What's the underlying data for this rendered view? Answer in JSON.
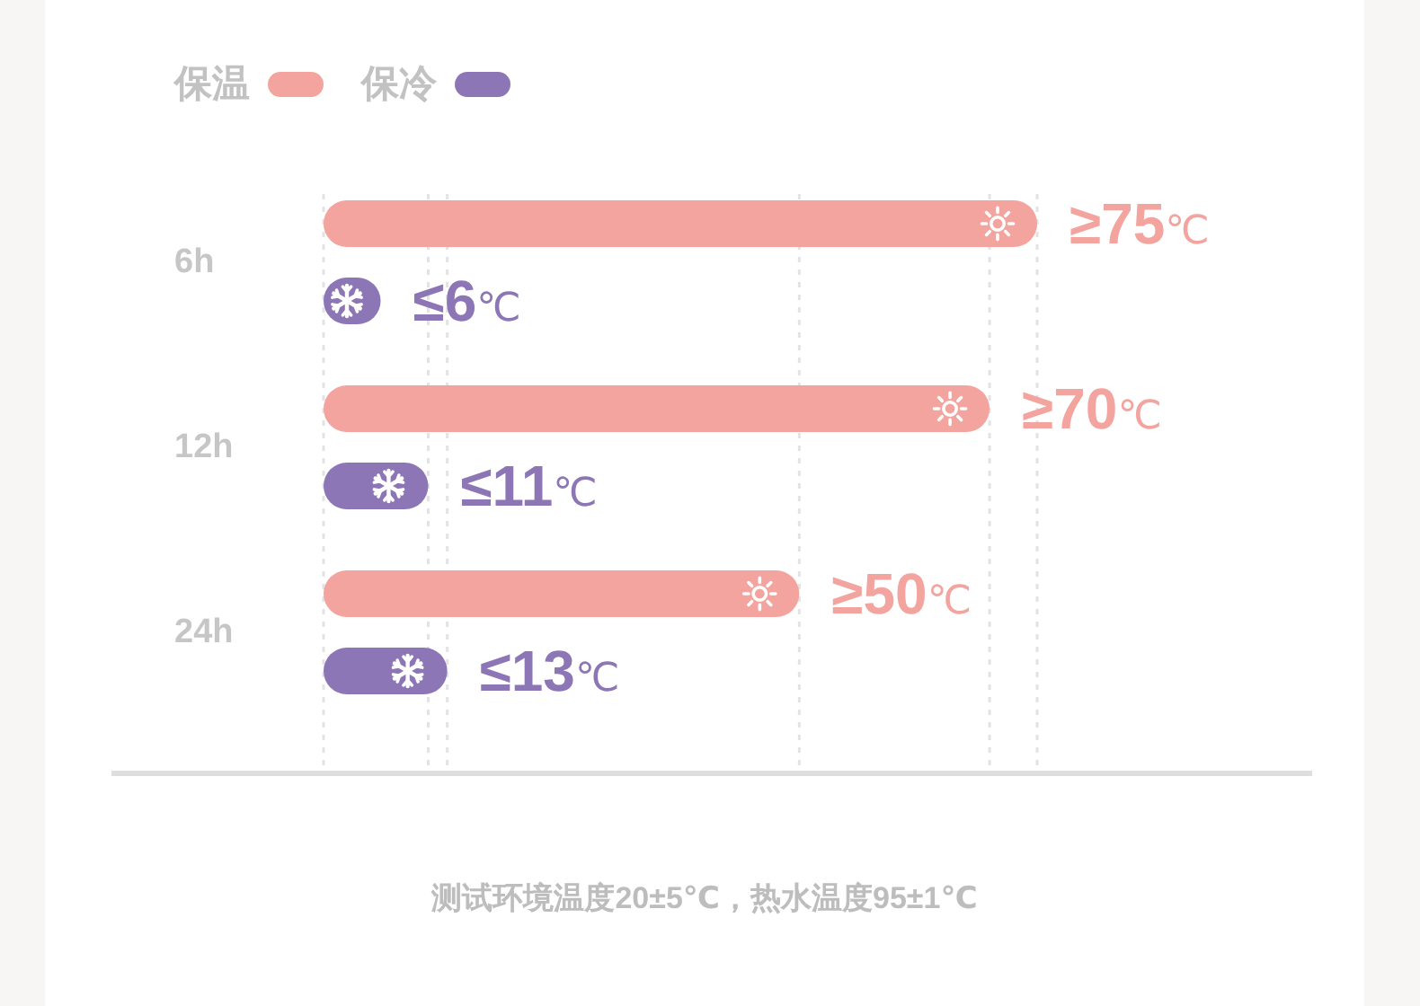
{
  "chart_data": {
    "type": "bar",
    "orientation": "horizontal",
    "categories": [
      "6h",
      "12h",
      "24h"
    ],
    "series": [
      {
        "name": "保温",
        "color": "#f3a49e",
        "values": [
          75,
          70,
          50
        ],
        "value_labels": [
          "≥75℃",
          "≥70℃",
          "≥50℃"
        ]
      },
      {
        "name": "保冷",
        "color": "#8c76b6",
        "values": [
          6,
          11,
          13
        ],
        "value_labels": [
          "≤6℃",
          "≤11℃",
          "≤13℃"
        ]
      }
    ],
    "legend": "top left",
    "tick_labels": "y",
    "ref_lines": [
      {
        "axis": "x",
        "value": 0,
        "color": "#e3e3e3",
        "line_style": "dashed"
      },
      {
        "axis": "x",
        "value": 11,
        "color": "#e3e3e3",
        "line_style": "dashed"
      },
      {
        "axis": "x",
        "value": 13,
        "color": "#e3e3e3",
        "line_style": "dashed"
      },
      {
        "axis": "x",
        "value": 50,
        "color": "#e3e3e3",
        "line_style": "dashed"
      },
      {
        "axis": "x",
        "value": 70,
        "color": "#e3e3e3",
        "line_style": "dashed"
      },
      {
        "axis": "x",
        "value": 75,
        "color": "#e3e3e3",
        "line_style": "dashed"
      }
    ],
    "annotations": [
      "测试环境温度20±5℃，热水温度95±1℃"
    ]
  }
}
